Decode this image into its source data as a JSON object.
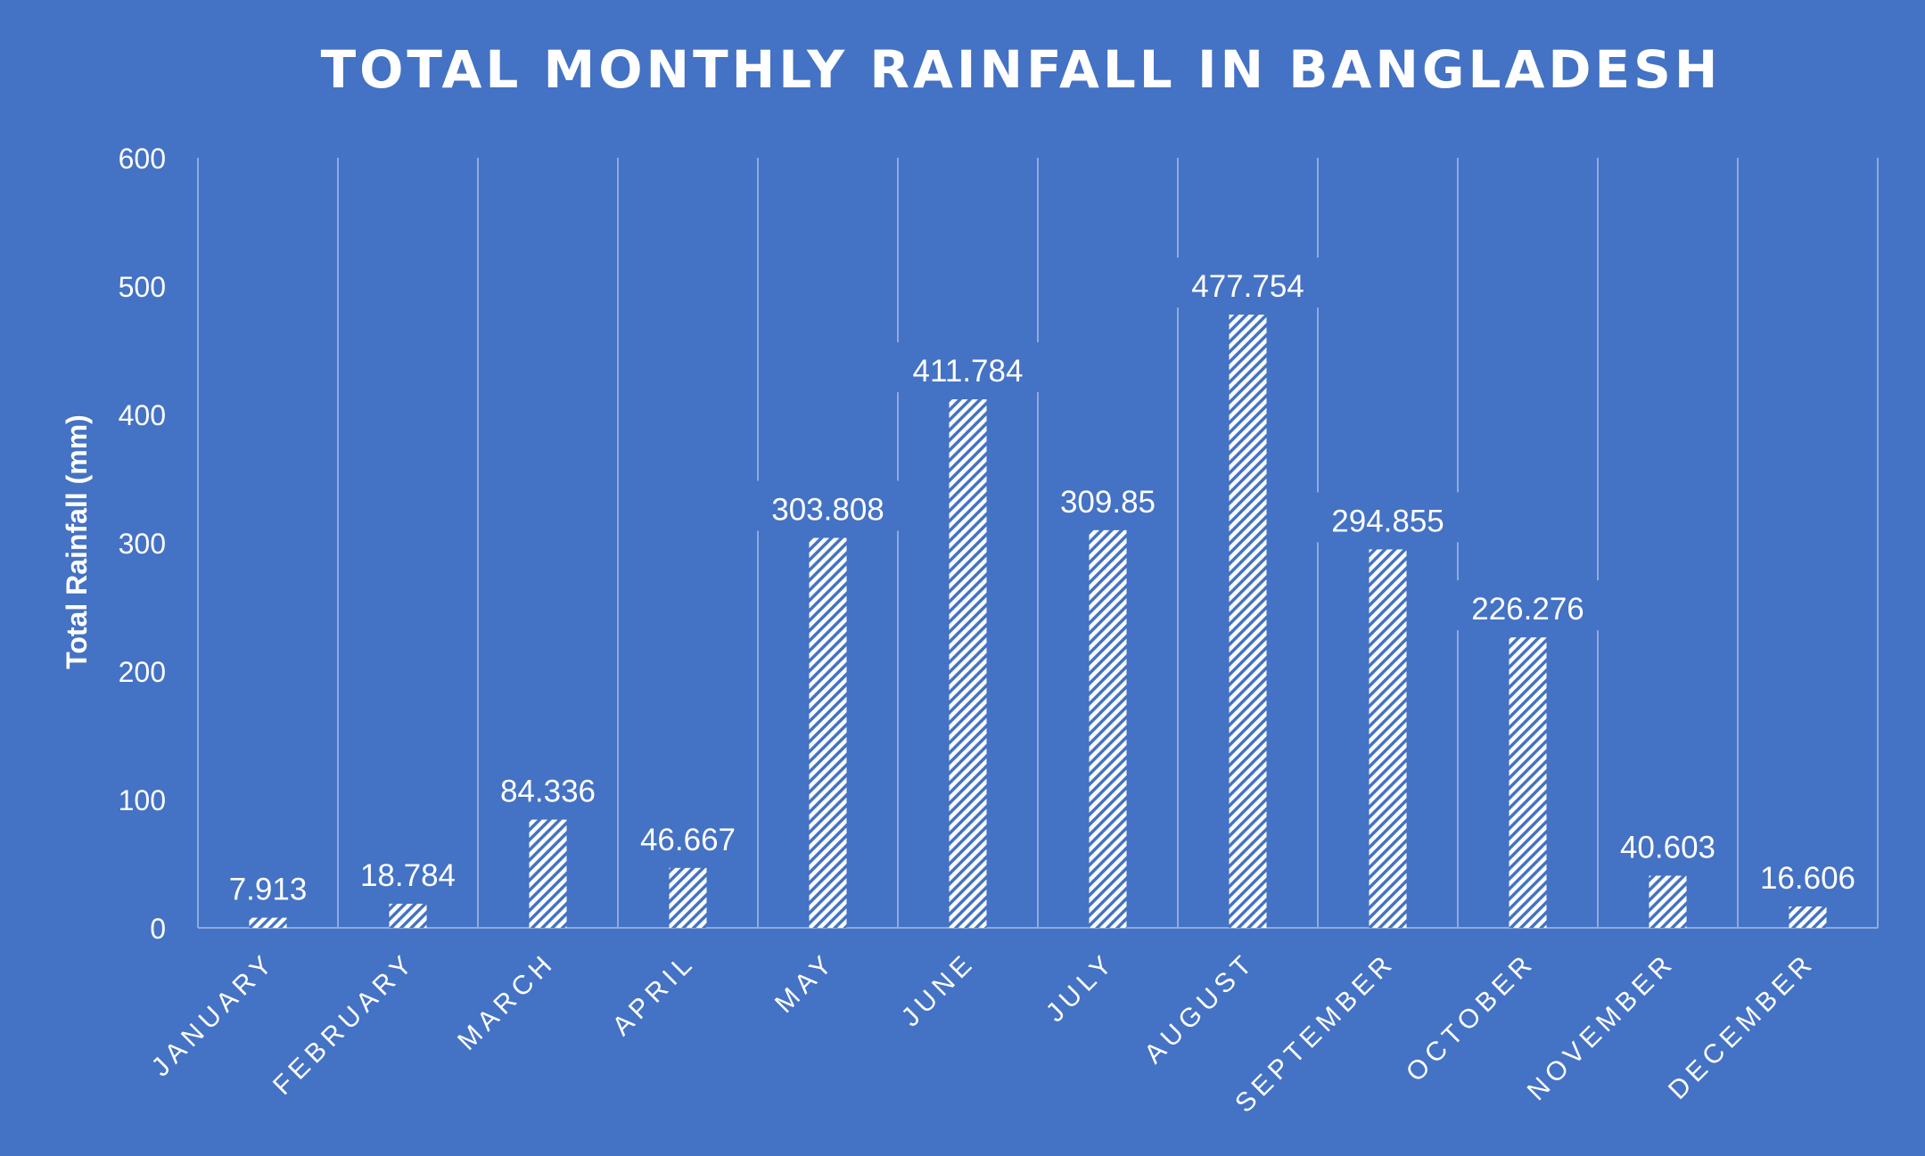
{
  "chart_data": {
    "type": "bar",
    "title": "TOTAL MONTHLY RAINFALL IN BANGLADESH",
    "xlabel": "",
    "ylabel": "Total Rainfall (mm)",
    "ylim": [
      0,
      600
    ],
    "yticks": [
      0,
      100,
      200,
      300,
      400,
      500,
      600
    ],
    "categories": [
      "JANUARY",
      "FEBRUARY",
      "MARCH",
      "APRIL",
      "MAY",
      "JUNE",
      "JULY",
      "AUGUST",
      "SEPTEMBER",
      "OCTOBER",
      "NOVEMBER",
      "DECEMBER"
    ],
    "values": [
      7.913,
      18.784,
      84.336,
      46.667,
      303.808,
      411.784,
      309.85,
      477.754,
      294.855,
      226.276,
      40.603,
      16.606
    ],
    "data_labels": [
      "7.913",
      "18.784",
      "84.336",
      "46.667",
      "303.808",
      "411.784",
      "309.85",
      "477.754",
      "294.855",
      "226.276",
      "40.603",
      "16.606"
    ],
    "grid": "vertical",
    "legend": "none",
    "bar_fill": "diagonal-hatch",
    "colors": {
      "background": "#4472c4",
      "bar": "#ffffff",
      "text": "#ffffff",
      "grid": "#8faadc"
    }
  }
}
